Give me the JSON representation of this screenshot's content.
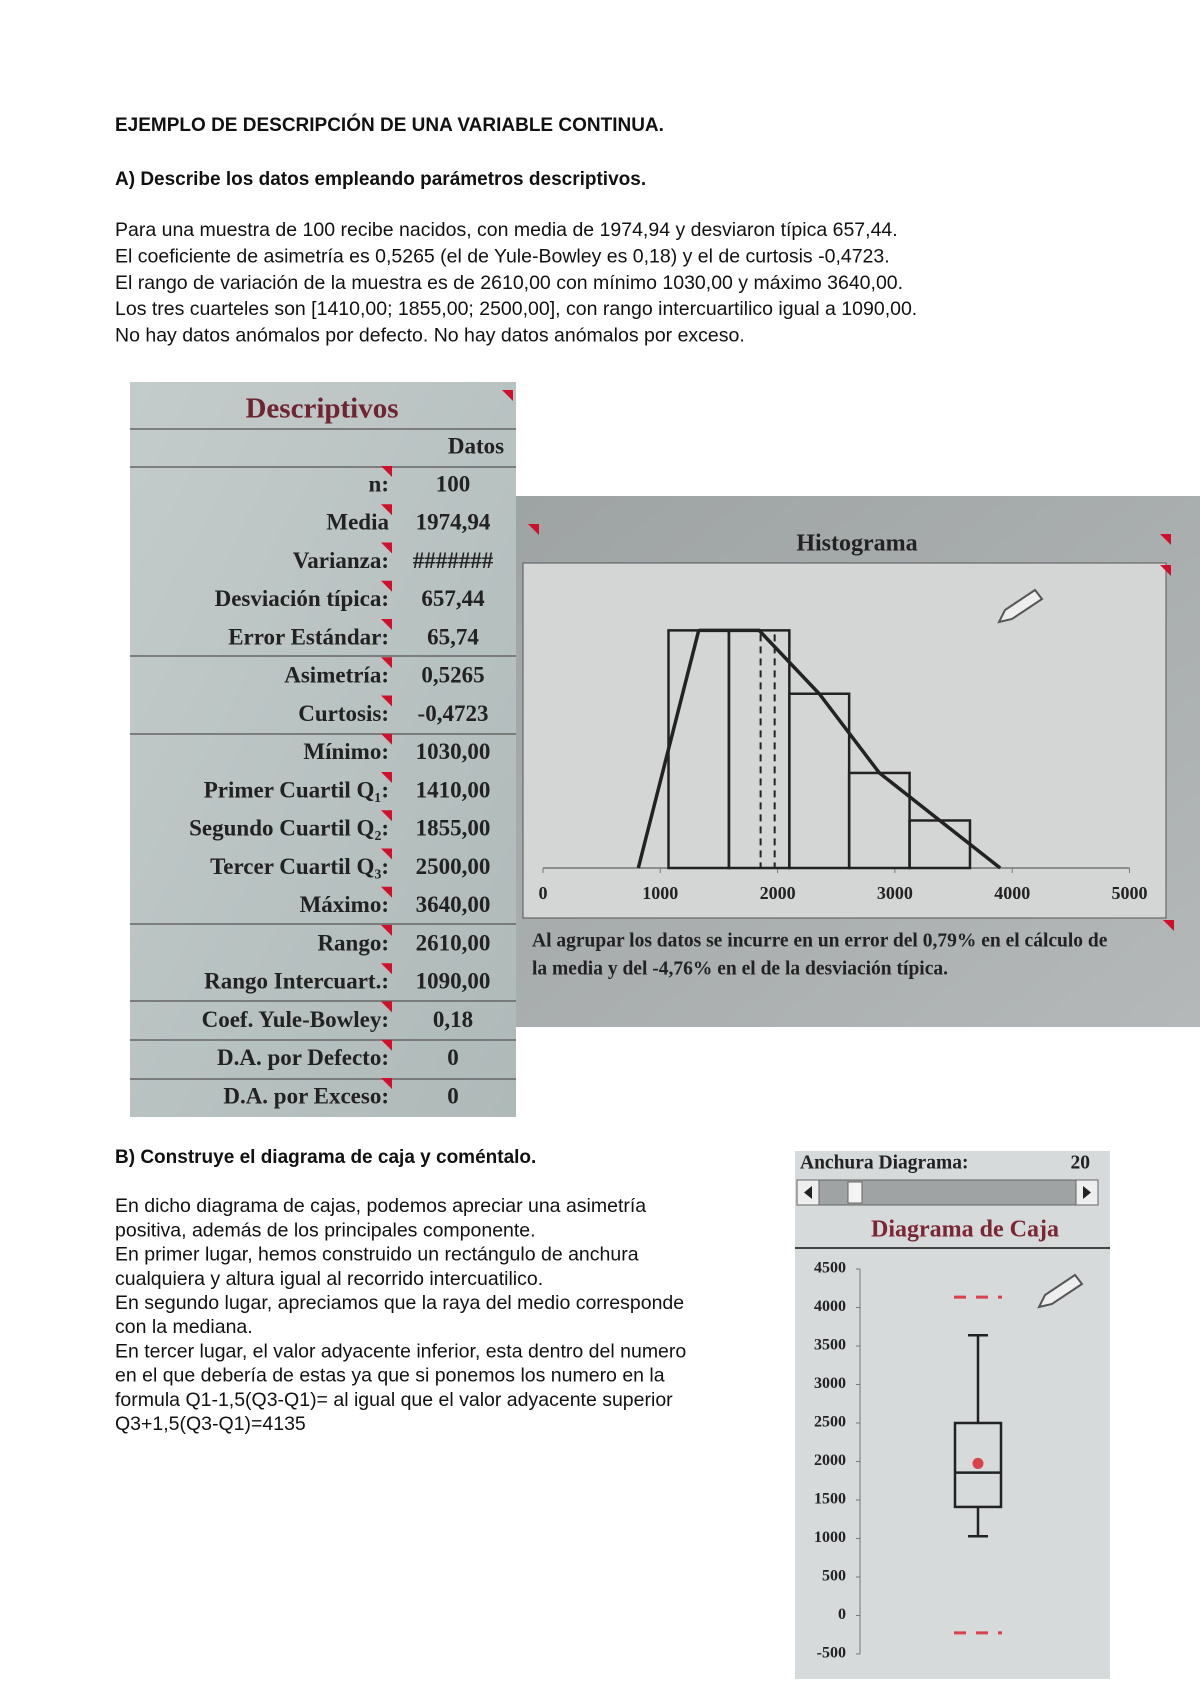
{
  "header": {
    "title": "EJEMPLO DE DESCRIPCIÓN DE UNA VARIABLE CONTINUA.",
    "section_a": "A)  Describe los datos empleando parámetros descriptivos."
  },
  "paragraph_a": [
    "Para una muestra de 100 recibe nacidos, con media de 1974,94 y desviaron típica 657,44.",
    "El coeficiente de asimetría es 0,5265 (el de Yule-Bowley es 0,18) y el de curtosis -0,4723.",
    "El rango de variación de la muestra es de 2610,00 con mínimo 1030,00 y máximo 3640,00.",
    "Los tres cuarteles son [1410,00; 1855,00; 2500,00], con rango intercuartilico igual a 1090,00.",
    "No hay datos anómalos por defecto. No hay datos anómalos por exceso."
  ],
  "descriptivos": {
    "title": "Descriptivos",
    "column": "Datos",
    "rows": [
      [
        "n:",
        "100"
      ],
      [
        "Media",
        "1974,94"
      ],
      [
        "Varianza:",
        "#######"
      ],
      [
        "Desviación típica:",
        "657,44"
      ],
      [
        "Error Estándar:",
        "65,74"
      ],
      [
        "Asimetría:",
        "0,5265"
      ],
      [
        "Curtosis:",
        "-0,4723"
      ],
      [
        "Mínimo:",
        "1030,00"
      ],
      [
        "Primer Cuartil Q₁:",
        "1410,00"
      ],
      [
        "Segundo Cuartil Q₂:",
        "1855,00"
      ],
      [
        "Tercer Cuartil Q₃:",
        "2500,00"
      ],
      [
        "Máximo:",
        "3640,00"
      ],
      [
        "Rango:",
        "2610,00"
      ],
      [
        "Rango Intercuart.:",
        "1090,00"
      ],
      [
        "Coef. Yule-Bowley:",
        "0,18"
      ],
      [
        "D.A. por Defecto:",
        "0"
      ],
      [
        "D.A. por Exceso:",
        "0"
      ]
    ]
  },
  "histogram": {
    "title": "Histograma",
    "bins": [
      1070,
      1585,
      2100,
      2610,
      3125,
      3640
    ],
    "counts": [
      30,
      30,
      22,
      12,
      6
    ],
    "xlim": [
      0,
      5000
    ],
    "xticks": [
      0,
      1000,
      2000,
      3000,
      4000,
      5000
    ],
    "ylim": [
      0,
      38
    ],
    "mean": 1974.94,
    "median": 1855,
    "note": [
      "Al agrupar los datos se incurre en un error del 0,79% en el cálculo de",
      "la media y del -4,76% en el de la desviación típica."
    ]
  },
  "section_b": "B)  Construye el diagrama de caja y coméntalo.",
  "paragraph_b": [
    "En dicho diagrama de cajas, podemos apreciar una asimetría",
    "positiva, además de los principales componente.",
    "En primer lugar, hemos construido un rectángulo de anchura",
    "cualquiera y altura igual al recorrido intercuatilico.",
    "En segundo lugar, apreciamos que la raya del medio corresponde",
    "con la mediana.",
    "En tercer lugar, el valor adyacente inferior, esta dentro del numero",
    "en el que debería de estas ya que si ponemos los numero en la",
    "formula Q1-1,5(Q3-Q1)= al igual que el valor adyacente superior",
    "Q3+1,5(Q3-Q1)=4135"
  ],
  "boxplot": {
    "slider_label": "Anchura Diagrama:",
    "slider_value": 20,
    "title": "Diagrama de Caja",
    "ylim": [
      -500,
      4500
    ],
    "yticks": [
      -500,
      0,
      500,
      1000,
      1500,
      2000,
      2500,
      3000,
      3500,
      4000,
      4500
    ],
    "whisker_low": 1030,
    "q1": 1410,
    "median": 1855,
    "q3": 2500,
    "whisker_high": 3640,
    "mean": 1974.94,
    "fence_low": -225,
    "fence_high": 4135
  }
}
